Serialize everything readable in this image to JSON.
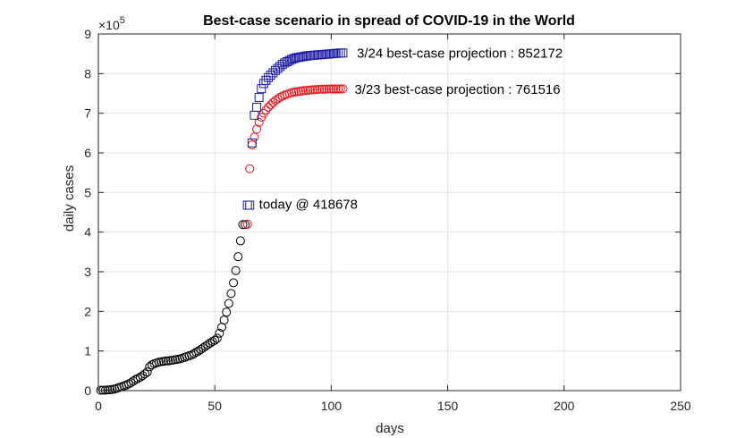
{
  "chart_data": {
    "type": "scatter",
    "title": "Best-case scenario in spread of COVID-19 in the World",
    "xlabel": "days",
    "ylabel": "daily cases",
    "y_exponent_label": "×10",
    "y_exponent_power": "5",
    "xlim": [
      0,
      250
    ],
    "ylim": [
      0,
      9
    ],
    "y_multiplier": 100000,
    "x_ticks": [
      0,
      50,
      100,
      150,
      200,
      250
    ],
    "y_ticks": [
      0,
      1,
      2,
      3,
      4,
      5,
      6,
      7,
      8,
      9
    ],
    "grid": true,
    "colors": {
      "observed": "#000000",
      "proj_323": "#e8141c",
      "proj_324": "#1a1aa6",
      "grid": "#e6e6e6",
      "axis": "#262626"
    },
    "series": [
      {
        "key": "observed",
        "marker": "circle",
        "x": [
          1,
          2,
          3,
          4,
          5,
          6,
          7,
          8,
          9,
          10,
          11,
          12,
          13,
          14,
          15,
          16,
          17,
          18,
          19,
          20,
          21,
          22,
          23,
          24,
          25,
          26,
          27,
          28,
          29,
          30,
          31,
          32,
          33,
          34,
          35,
          36,
          37,
          38,
          39,
          40,
          41,
          42,
          43,
          44,
          45,
          46,
          47,
          48,
          49,
          50,
          51,
          52,
          53,
          54,
          55,
          56,
          57,
          58,
          59,
          60,
          61,
          62,
          63
        ],
        "y": [
          0.01,
          0.01,
          0.01,
          0.02,
          0.02,
          0.03,
          0.04,
          0.06,
          0.08,
          0.1,
          0.12,
          0.14,
          0.17,
          0.2,
          0.24,
          0.28,
          0.31,
          0.34,
          0.38,
          0.42,
          0.47,
          0.6,
          0.65,
          0.68,
          0.7,
          0.72,
          0.73,
          0.74,
          0.75,
          0.75,
          0.76,
          0.77,
          0.78,
          0.79,
          0.8,
          0.82,
          0.84,
          0.86,
          0.88,
          0.9,
          0.93,
          0.97,
          1.0,
          1.04,
          1.08,
          1.12,
          1.16,
          1.2,
          1.24,
          1.27,
          1.32,
          1.45,
          1.6,
          1.78,
          1.98,
          2.2,
          2.45,
          2.72,
          3.03,
          3.38,
          3.78,
          4.19,
          4.19
        ]
      },
      {
        "key": "proj_323",
        "marker": "circle",
        "x": [
          64,
          65,
          66,
          67,
          68,
          69,
          70,
          71,
          72,
          73,
          74,
          75,
          76,
          77,
          78,
          79,
          80,
          81,
          82,
          83,
          84,
          85,
          86,
          87,
          88,
          89,
          90,
          91,
          92,
          93,
          94,
          95,
          96,
          97,
          98,
          99,
          100,
          101,
          102,
          103,
          104,
          105
        ],
        "y": [
          4.2,
          5.6,
          6.2,
          6.4,
          6.6,
          6.77,
          6.9,
          7.0,
          7.08,
          7.15,
          7.21,
          7.27,
          7.32,
          7.36,
          7.4,
          7.43,
          7.46,
          7.48,
          7.5,
          7.52,
          7.53,
          7.54,
          7.55,
          7.56,
          7.57,
          7.575,
          7.58,
          7.585,
          7.59,
          7.595,
          7.6,
          7.603,
          7.606,
          7.608,
          7.61,
          7.611,
          7.612,
          7.613,
          7.614,
          7.614,
          7.615,
          7.615
        ]
      },
      {
        "key": "proj_324",
        "marker": "square",
        "x": [
          64,
          65,
          66,
          67,
          68,
          69,
          70,
          71,
          72,
          73,
          74,
          75,
          76,
          77,
          78,
          79,
          80,
          81,
          82,
          83,
          84,
          85,
          86,
          87,
          88,
          89,
          90,
          91,
          92,
          93,
          94,
          95,
          96,
          97,
          98,
          99,
          100,
          101,
          102,
          103,
          104,
          105
        ],
        "y": [
          4.68,
          4.68,
          6.25,
          6.95,
          7.15,
          7.4,
          7.62,
          7.75,
          7.83,
          7.9,
          7.96,
          8.02,
          8.08,
          8.13,
          8.18,
          8.23,
          8.27,
          8.3,
          8.33,
          8.36,
          8.38,
          8.4,
          8.41,
          8.42,
          8.43,
          8.44,
          8.45,
          8.455,
          8.46,
          8.465,
          8.47,
          8.475,
          8.48,
          8.485,
          8.49,
          8.495,
          8.5,
          8.505,
          8.51,
          8.515,
          8.52,
          8.52
        ]
      }
    ],
    "annotations": [
      {
        "key": "ann_324",
        "text": "3/24 best-case projection : 852172",
        "x": 111,
        "y": 8.52,
        "color": "#000000"
      },
      {
        "key": "ann_323",
        "text": "3/23 best-case projection : 761516",
        "x": 110,
        "y": 7.6,
        "color": "#000000"
      },
      {
        "key": "ann_today",
        "text": "today @ 418678",
        "x": 69,
        "y": 4.7,
        "color": "#000000"
      }
    ]
  }
}
